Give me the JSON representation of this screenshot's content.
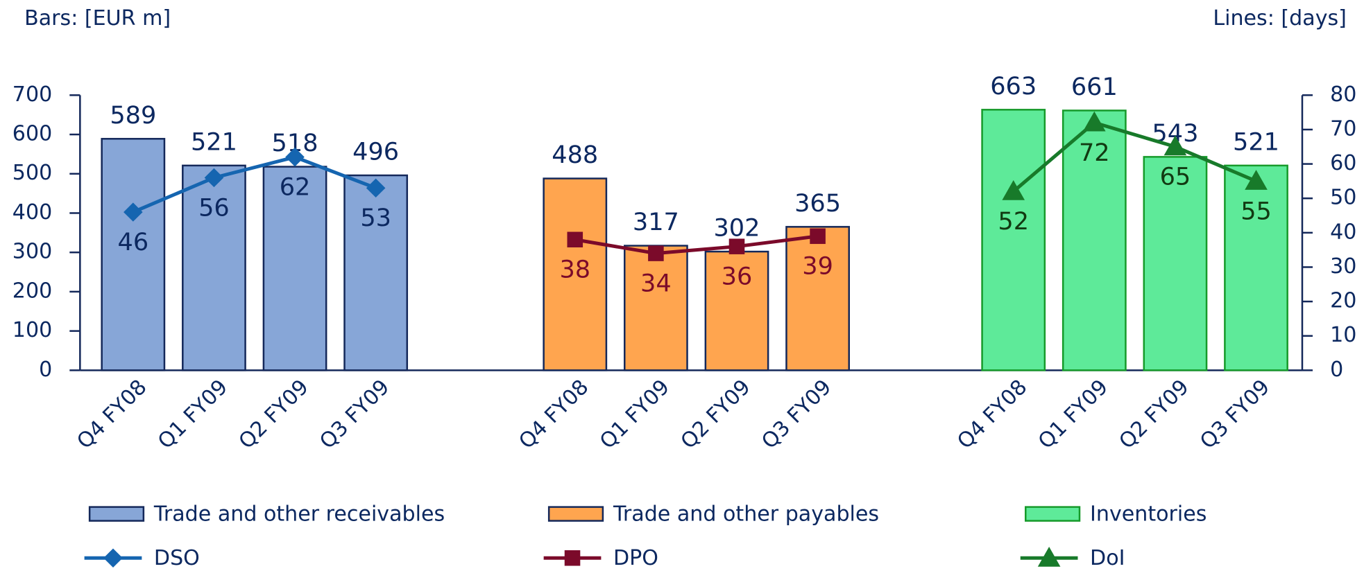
{
  "chart_data": {
    "type": "bar",
    "y_label": "Bars: [EUR m]",
    "y2_label": "Lines: [days]",
    "categories": [
      "Q4 FY08",
      "Q1 FY09",
      "Q2 FY09",
      "Q3 FY09"
    ],
    "ylim": [
      0,
      700
    ],
    "yticks": [
      0,
      100,
      200,
      300,
      400,
      500,
      600,
      700
    ],
    "y2lim": [
      0,
      80
    ],
    "y2ticks": [
      0,
      10,
      20,
      30,
      40,
      50,
      60,
      70,
      80
    ],
    "series": [
      {
        "name": "Trade and other receivables",
        "type": "bar",
        "color": "#87a6d7",
        "edge": "#14285a",
        "values": [
          589,
          521,
          518,
          496
        ]
      },
      {
        "name": "Trade and other payables",
        "type": "bar",
        "color": "#ffa54f",
        "edge": "#14285a",
        "values": [
          488,
          317,
          302,
          365
        ]
      },
      {
        "name": "Inventories",
        "type": "bar",
        "color": "#5eea99",
        "edge": "#169a2a",
        "values": [
          663,
          661,
          543,
          521
        ]
      },
      {
        "name": "DSO",
        "type": "line",
        "axis": "y2",
        "marker": "diamond",
        "color": "#1565b0",
        "label_color": "#0c2860",
        "values": [
          46,
          56,
          62,
          53
        ]
      },
      {
        "name": "DPO",
        "type": "line",
        "axis": "y2",
        "marker": "square",
        "color": "#7b0a2a",
        "label_color": "#7b0a2a",
        "values": [
          38,
          34,
          36,
          39
        ]
      },
      {
        "name": "DoI",
        "type": "line",
        "axis": "y2",
        "marker": "triangle",
        "color": "#187a2a",
        "label_color": "#123a12",
        "values": [
          52,
          72,
          65,
          55
        ]
      }
    ]
  }
}
